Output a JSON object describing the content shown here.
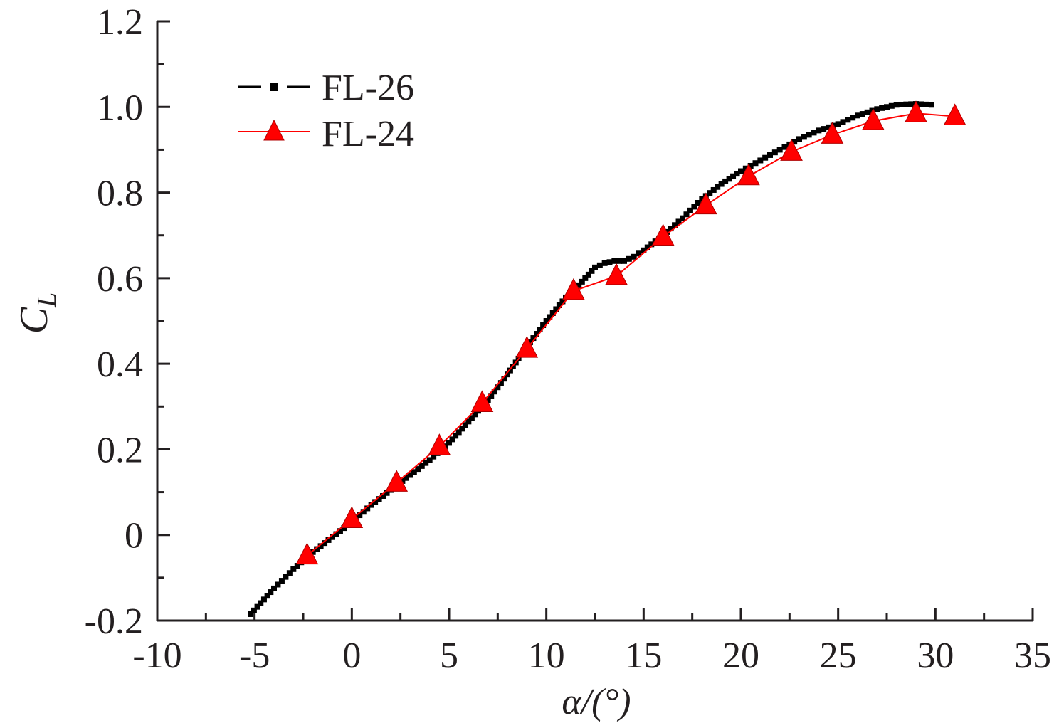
{
  "chart_data": {
    "type": "line",
    "xlabel": "α/(°)",
    "ylabel": "C",
    "ylabel_subscript": "L",
    "xlim": [
      -10,
      35
    ],
    "ylim": [
      -0.2,
      1.2
    ],
    "x_ticks": [
      -10,
      -5,
      0,
      5,
      10,
      15,
      20,
      25,
      30,
      35
    ],
    "x_tick_labels": [
      "-10",
      "-5",
      "0",
      "5",
      "10",
      "15",
      "20",
      "25",
      "30",
      "35"
    ],
    "y_ticks": [
      -0.2,
      0,
      0.2,
      0.4,
      0.6,
      0.8,
      1.0,
      1.2
    ],
    "y_tick_labels": [
      "-0.2",
      "0",
      "0.2",
      "0.4",
      "0.6",
      "0.8",
      "1.0",
      "1.2"
    ],
    "grid": false,
    "legend_position": "top-left",
    "series": [
      {
        "name": "FL-26",
        "color": "#000000",
        "marker": "square",
        "line_style": "dash-dot",
        "x": [
          -5.2,
          -4,
          -3,
          -2,
          -1,
          0,
          1,
          2,
          3,
          4,
          5,
          6,
          7,
          8,
          9,
          10,
          11,
          11.5,
          12,
          12.5,
          13,
          13.5,
          14,
          14.5,
          15,
          16,
          17,
          18,
          19,
          20,
          21,
          22,
          23,
          24,
          25,
          26,
          27,
          28,
          29,
          29.8
        ],
        "y": [
          -0.185,
          -0.125,
          -0.08,
          -0.04,
          -0.005,
          0.03,
          0.07,
          0.105,
          0.14,
          0.175,
          0.215,
          0.265,
          0.315,
          0.375,
          0.44,
          0.5,
          0.555,
          0.575,
          0.6,
          0.625,
          0.635,
          0.64,
          0.64,
          0.65,
          0.665,
          0.7,
          0.74,
          0.785,
          0.82,
          0.85,
          0.875,
          0.9,
          0.925,
          0.945,
          0.96,
          0.98,
          0.995,
          1.005,
          1.007,
          1.005
        ]
      },
      {
        "name": "FL-24",
        "color": "#ff0000",
        "marker": "triangle",
        "line_style": "solid",
        "x": [
          -2.3,
          0,
          2.3,
          4.5,
          6.7,
          9,
          11.4,
          13.6,
          16,
          18.2,
          20.4,
          22.6,
          24.7,
          26.8,
          29,
          31
        ],
        "y": [
          -0.048,
          0.037,
          0.122,
          0.207,
          0.308,
          0.435,
          0.57,
          0.605,
          0.697,
          0.77,
          0.838,
          0.895,
          0.935,
          0.967,
          0.985,
          0.978
        ]
      }
    ]
  }
}
